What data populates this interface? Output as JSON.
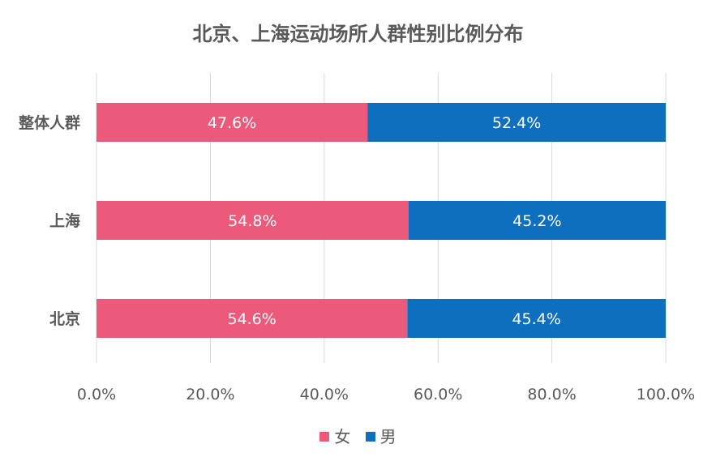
{
  "chart_data": {
    "type": "bar",
    "orientation": "horizontal",
    "stacked": "percent",
    "title": "北京、上海运动场所人群性别比例分布",
    "categories": [
      "整体人群",
      "上海",
      "北京"
    ],
    "series": [
      {
        "name": "女",
        "color": "#EB5A7A",
        "values": [
          47.6,
          54.8,
          54.6
        ],
        "labels": [
          "47.6%",
          "54.8%",
          "54.6%"
        ]
      },
      {
        "name": "男",
        "color": "#0F6FBF",
        "values": [
          52.4,
          45.2,
          45.4
        ],
        "labels": [
          "52.4%",
          "45.2%",
          "45.4%"
        ]
      }
    ],
    "xlim": [
      0,
      100
    ],
    "x_ticks": [
      "0.0%",
      "20.0%",
      "40.0%",
      "60.0%",
      "80.0%",
      "100.0%"
    ],
    "grid": true,
    "legend_position": "bottom"
  }
}
